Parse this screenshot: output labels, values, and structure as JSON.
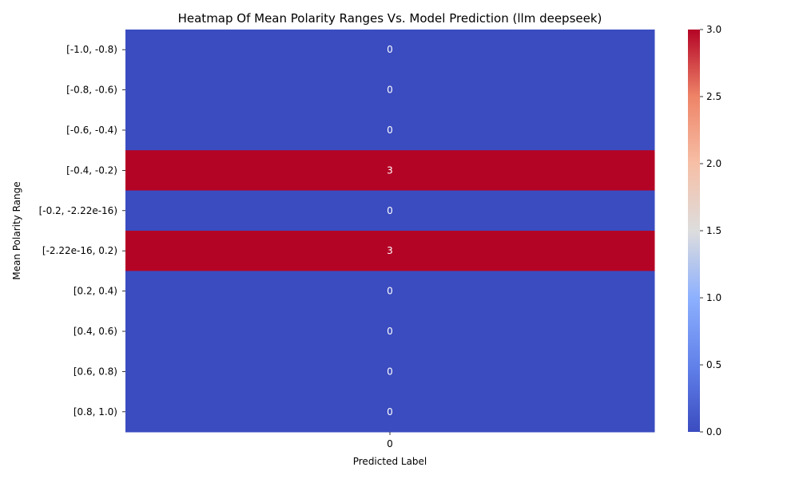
{
  "chart_data": {
    "type": "heatmap",
    "title": "Heatmap Of Mean Polarity Ranges Vs. Model Prediction (llm deepseek)",
    "xlabel": "Predicted Label",
    "ylabel": "Mean Polarity Range",
    "x_categories": [
      "0"
    ],
    "y_categories": [
      "[-1.0, -0.8)",
      "[-0.8, -0.6)",
      "[-0.6, -0.4)",
      "[-0.4, -0.2)",
      "[-0.2, -2.22e-16)",
      "[-2.22e-16, 0.2)",
      "[0.2, 0.4)",
      "[0.4, 0.6)",
      "[0.6, 0.8)",
      "[0.8, 1.0)"
    ],
    "values": [
      [
        0
      ],
      [
        0
      ],
      [
        0
      ],
      [
        3
      ],
      [
        0
      ],
      [
        3
      ],
      [
        0
      ],
      [
        0
      ],
      [
        0
      ],
      [
        0
      ]
    ],
    "colormap": "coolwarm",
    "vmin": 0,
    "vmax": 3,
    "colorbar_ticks": [
      "0.0",
      "0.5",
      "1.0",
      "1.5",
      "2.0",
      "2.5",
      "3.0"
    ],
    "annotate": true,
    "colors": {
      "low": "#3b4cc0",
      "high": "#b40426",
      "annotation_text": "#ffffff"
    }
  }
}
